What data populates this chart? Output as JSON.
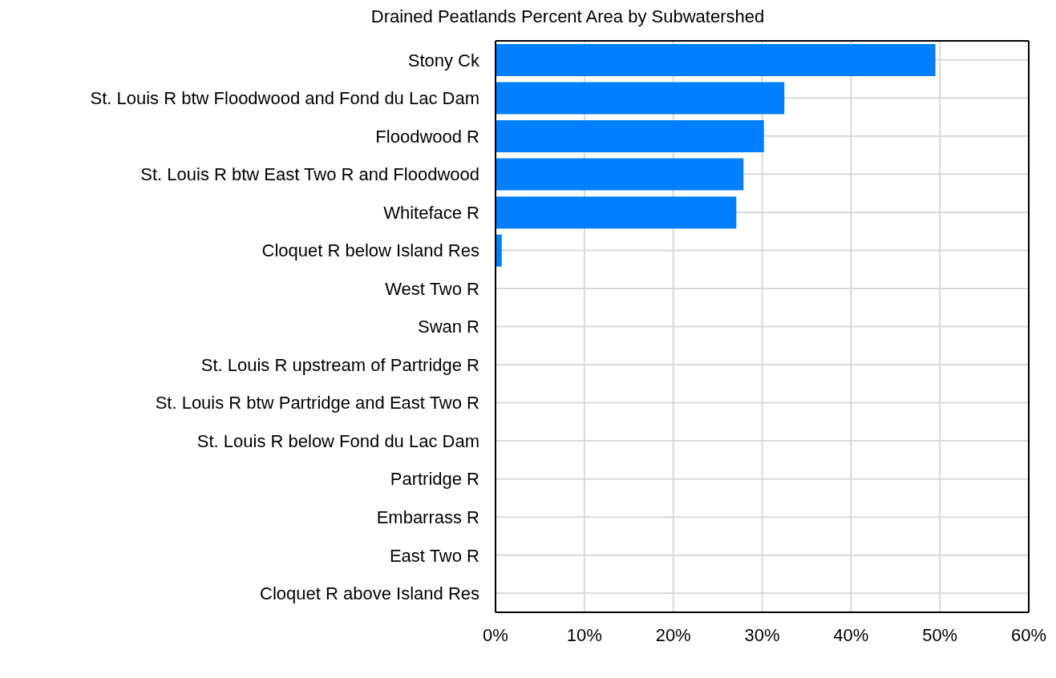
{
  "chart_data": {
    "type": "bar",
    "orientation": "horizontal",
    "title": "Drained Peatlands Percent Area by Subwatershed",
    "categories": [
      "Stony Ck",
      "St. Louis R btw Floodwood and Fond du Lac Dam",
      "Floodwood R",
      "St. Louis R btw East Two R and Floodwood",
      "Whiteface R",
      "Cloquet R below Island Res",
      "West Two R",
      "Swan R",
      "St. Louis R upstream of Partridge R",
      "St. Louis R btw Partridge and East Two R",
      "St. Louis R below Fond du Lac Dam",
      "Partridge R",
      "Embarrass R",
      "East Two R",
      "Cloquet R above Island Res"
    ],
    "values": [
      49.5,
      32.5,
      30.2,
      27.9,
      27.1,
      0.7,
      0,
      0,
      0,
      0,
      0,
      0,
      0,
      0,
      0
    ],
    "color": "#0080ff",
    "xlim": [
      0,
      60
    ],
    "xticks": [
      {
        "value": 0,
        "label": "0%"
      },
      {
        "value": 10,
        "label": "10%"
      },
      {
        "value": 20,
        "label": "20%"
      },
      {
        "value": 30,
        "label": "30%"
      },
      {
        "value": 40,
        "label": "40%"
      },
      {
        "value": 50,
        "label": "50%"
      },
      {
        "value": 60,
        "label": "60%"
      }
    ],
    "grid": true
  }
}
